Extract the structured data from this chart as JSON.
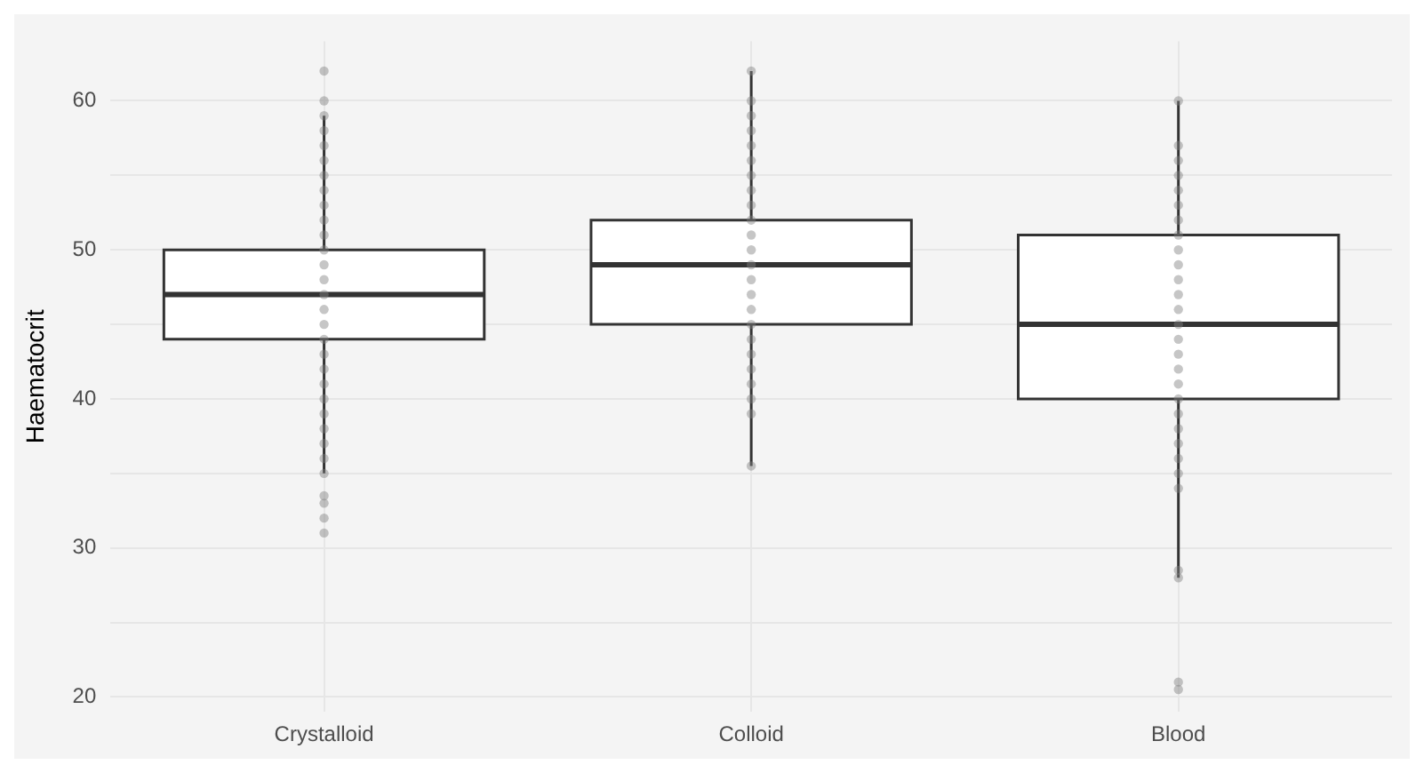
{
  "chart_data": {
    "type": "box",
    "ylabel": "Haematocrit",
    "categories": [
      "Crystalloid",
      "Colloid",
      "Blood"
    ],
    "boxes": [
      {
        "low": 35,
        "q1": 44,
        "median": 47,
        "q3": 50,
        "high": 59
      },
      {
        "low": 35.5,
        "q1": 45,
        "median": 49,
        "q3": 52,
        "high": 62
      },
      {
        "low": 28,
        "q1": 40,
        "median": 45,
        "q3": 51,
        "high": 60
      }
    ],
    "series": [
      {
        "type": "scatter",
        "color": "#808080",
        "x": [
          "Crystalloid",
          "Crystalloid",
          "Crystalloid",
          "Crystalloid",
          "Crystalloid",
          "Crystalloid",
          "Crystalloid",
          "Crystalloid",
          "Crystalloid",
          "Crystalloid",
          "Crystalloid",
          "Crystalloid",
          "Crystalloid",
          "Crystalloid",
          "Crystalloid",
          "Crystalloid",
          "Crystalloid",
          "Crystalloid",
          "Crystalloid",
          "Crystalloid",
          "Crystalloid",
          "Crystalloid",
          "Crystalloid",
          "Crystalloid",
          "Crystalloid",
          "Crystalloid",
          "Crystalloid",
          "Crystalloid",
          "Crystalloid",
          "Crystalloid",
          "Crystalloid"
        ],
        "values": [
          62,
          60,
          59,
          58,
          57,
          56,
          55,
          54,
          53,
          52,
          51,
          50,
          49,
          48,
          47,
          46,
          45,
          44,
          43,
          42,
          41,
          40,
          39,
          38,
          37,
          36,
          35,
          33.5,
          33,
          32,
          31
        ]
      },
      {
        "type": "scatter",
        "color": "#808080",
        "x": [
          "Colloid",
          "Colloid",
          "Colloid",
          "Colloid",
          "Colloid",
          "Colloid",
          "Colloid",
          "Colloid",
          "Colloid",
          "Colloid",
          "Colloid",
          "Colloid",
          "Colloid",
          "Colloid",
          "Colloid",
          "Colloid",
          "Colloid",
          "Colloid",
          "Colloid",
          "Colloid",
          "Colloid",
          "Colloid",
          "Colloid",
          "Colloid"
        ],
        "values": [
          62,
          60,
          59,
          58,
          57,
          56,
          55,
          54,
          53,
          52,
          51,
          50,
          49,
          48,
          47,
          46,
          45,
          44,
          43,
          42,
          41,
          40,
          39,
          35.5
        ]
      },
      {
        "type": "scatter",
        "color": "#808080",
        "x": [
          "Blood",
          "Blood",
          "Blood",
          "Blood",
          "Blood",
          "Blood",
          "Blood",
          "Blood",
          "Blood",
          "Blood",
          "Blood",
          "Blood",
          "Blood",
          "Blood",
          "Blood",
          "Blood",
          "Blood",
          "Blood",
          "Blood",
          "Blood",
          "Blood",
          "Blood",
          "Blood",
          "Blood",
          "Blood",
          "Blood",
          "Blood",
          "Blood",
          "Blood"
        ],
        "values": [
          60,
          57,
          56,
          55,
          54,
          53,
          52,
          51,
          50,
          49,
          48,
          47,
          46,
          45,
          44,
          43,
          42,
          41,
          40,
          39,
          38,
          37,
          36,
          35,
          34,
          28.5,
          28,
          21,
          20.5
        ]
      }
    ],
    "ylim": [
      19,
      64
    ],
    "yticks": [
      20,
      {
        "value": 25,
        "label": null
      },
      30,
      {
        "value": 35,
        "label": null
      },
      40,
      {
        "value": 45,
        "label": null
      },
      50,
      {
        "value": 55,
        "label": null
      },
      60
    ],
    "grid": true,
    "marker": "circle",
    "legend": false
  }
}
